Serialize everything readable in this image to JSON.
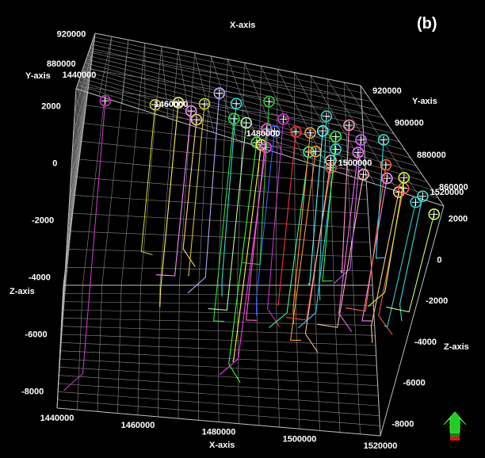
{
  "panel_label": "(b)",
  "chart_data": {
    "type": "scatter",
    "title": "",
    "x_axis": {
      "label": "X-axis",
      "ticks": [
        "1440000",
        "1460000",
        "1480000",
        "1500000",
        "1520000"
      ],
      "range": [
        1440000,
        1520000
      ]
    },
    "y_axis": {
      "label": "Y-axis",
      "ticks_left": [
        "920000",
        "880000"
      ],
      "ticks_right": [
        "920000",
        "900000",
        "880000",
        "860000"
      ],
      "range": [
        850000,
        925000
      ]
    },
    "z_axis": {
      "label": "Z-axis",
      "ticks_left": [
        "2000",
        "0",
        "-2000",
        "-4000",
        "-6000",
        "-8000"
      ],
      "ticks_right": [
        "2000",
        "0",
        "-2000",
        "-4000",
        "-6000",
        "-8000"
      ],
      "range": [
        -8600,
        2600
      ]
    },
    "grid": true,
    "view": "3d-perspective",
    "wells": [
      {
        "x": 1446000,
        "y": 872000,
        "z_top": 1800,
        "z_bot": -8600,
        "color": "#cc33cc"
      },
      {
        "x": 1458000,
        "y": 882000,
        "z_top": 1800,
        "z_bot": -4200,
        "color": "#cccc33"
      },
      {
        "x": 1464000,
        "y": 890000,
        "z_top": 1800,
        "z_bot": -6200,
        "color": "#ffee55"
      },
      {
        "x": 1467000,
        "y": 885000,
        "z_top": 1800,
        "z_bot": -5200,
        "color": "#ff88ff"
      },
      {
        "x": 1468000,
        "y": 878000,
        "z_top": 1800,
        "z_bot": -3600,
        "color": "#ffd27a"
      },
      {
        "x": 1471000,
        "y": 895000,
        "z_top": 1800,
        "z_bot": -5800,
        "color": "#cccc33"
      },
      {
        "x": 1476000,
        "y": 908000,
        "z_top": 1800,
        "z_bot": -6800,
        "color": "#aaaaff"
      },
      {
        "x": 1478000,
        "y": 888000,
        "z_top": 1800,
        "z_bot": -7200,
        "color": "#33dd33"
      },
      {
        "x": 1480000,
        "y": 902000,
        "z_top": 1800,
        "z_bot": -6400,
        "color": "#33dddd"
      },
      {
        "x": 1481000,
        "y": 887000,
        "z_top": 1800,
        "z_bot": -6600,
        "color": "#aaffaa"
      },
      {
        "x": 1482000,
        "y": 872000,
        "z_top": 1800,
        "z_bot": -7800,
        "color": "#33ff33"
      },
      {
        "x": 1483000,
        "y": 871000,
        "z_top": 1800,
        "z_bot": -7600,
        "color": "#ffff33"
      },
      {
        "x": 1484000,
        "y": 870000,
        "z_top": 1800,
        "z_bot": -7400,
        "color": "#ff33ff"
      },
      {
        "x": 1486000,
        "y": 886000,
        "z_top": 1800,
        "z_bot": -6900,
        "color": "#ff66cc"
      },
      {
        "x": 1488000,
        "y": 886000,
        "z_top": 1800,
        "z_bot": -5900,
        "color": "#3366ff"
      },
      {
        "x": 1490000,
        "y": 910000,
        "z_top": 1800,
        "z_bot": -6200,
        "color": "#33cc33"
      },
      {
        "x": 1492000,
        "y": 898000,
        "z_top": 1800,
        "z_bot": -7300,
        "color": "#cc33cc"
      },
      {
        "x": 1494000,
        "y": 890000,
        "z_top": 1800,
        "z_bot": -6400,
        "color": "#ff3333"
      },
      {
        "x": 1495000,
        "y": 876000,
        "z_top": 1800,
        "z_bot": -5600,
        "color": "#33ff99"
      },
      {
        "x": 1497000,
        "y": 878000,
        "z_top": 1800,
        "z_bot": -7000,
        "color": "#ff9933"
      },
      {
        "x": 1498000,
        "y": 892000,
        "z_top": 1800,
        "z_bot": -6600,
        "color": "#ff9933"
      },
      {
        "x": 1499000,
        "y": 868000,
        "z_top": 1800,
        "z_bot": -5200,
        "color": "#ff4444"
      },
      {
        "x": 1500000,
        "y": 874000,
        "z_top": 1800,
        "z_bot": -6300,
        "color": "#ffbb99"
      },
      {
        "x": 1502000,
        "y": 896000,
        "z_top": 1800,
        "z_bot": -5800,
        "color": "#55ffff"
      },
      {
        "x": 1503000,
        "y": 884000,
        "z_top": 1800,
        "z_bot": -6100,
        "color": "#33ccff"
      },
      {
        "x": 1505000,
        "y": 894000,
        "z_top": 1800,
        "z_bot": -5400,
        "color": "#33ff33"
      },
      {
        "x": 1505500,
        "y": 908000,
        "z_top": 1800,
        "z_bot": -6800,
        "color": "#33cccc"
      },
      {
        "x": 1507000,
        "y": 870000,
        "z_top": 1800,
        "z_bot": -5500,
        "color": "#ffbbaa"
      },
      {
        "x": 1509000,
        "y": 886000,
        "z_top": 1800,
        "z_bot": -6200,
        "color": "#ff66ff"
      },
      {
        "x": 1511000,
        "y": 905000,
        "z_top": 1800,
        "z_bot": -5900,
        "color": "#ff99cc"
      },
      {
        "x": 1512000,
        "y": 896000,
        "z_top": 1800,
        "z_bot": -4800,
        "color": "#cc66ff"
      },
      {
        "x": 1513000,
        "y": 872000,
        "z_top": 1800,
        "z_bot": -5200,
        "color": "#ff88ff"
      },
      {
        "x": 1514000,
        "y": 864000,
        "z_top": 1800,
        "z_bot": -4700,
        "color": "#ffcc88"
      },
      {
        "x": 1515000,
        "y": 882000,
        "z_top": 1800,
        "z_bot": -5600,
        "color": "#ff6633"
      },
      {
        "x": 1516000,
        "y": 868000,
        "z_top": 1800,
        "z_bot": -4500,
        "color": "#ff5555"
      },
      {
        "x": 1517000,
        "y": 860000,
        "z_top": 1800,
        "z_bot": -4300,
        "color": "#33cccc"
      },
      {
        "x": 1518000,
        "y": 876000,
        "z_top": 1800,
        "z_bot": -4000,
        "color": "#ccff33"
      },
      {
        "x": 1519000,
        "y": 900000,
        "z_top": 1800,
        "z_bot": -4500,
        "color": "#33dddd"
      },
      {
        "x": 1520000,
        "y": 866000,
        "z_top": 1800,
        "z_bot": -3600,
        "color": "#33dddd"
      },
      {
        "x": 1520000,
        "y": 855000,
        "z_top": 1800,
        "z_bot": -3000,
        "color": "#ccff66"
      }
    ]
  },
  "colors": {
    "background": "#000000",
    "grid": "#8c8c8c",
    "text": "#ffffff",
    "arrow_green": "#22cc22",
    "arrow_red": "#dd1111"
  },
  "icons": {
    "orientation": "orientation-arrow-icon"
  }
}
